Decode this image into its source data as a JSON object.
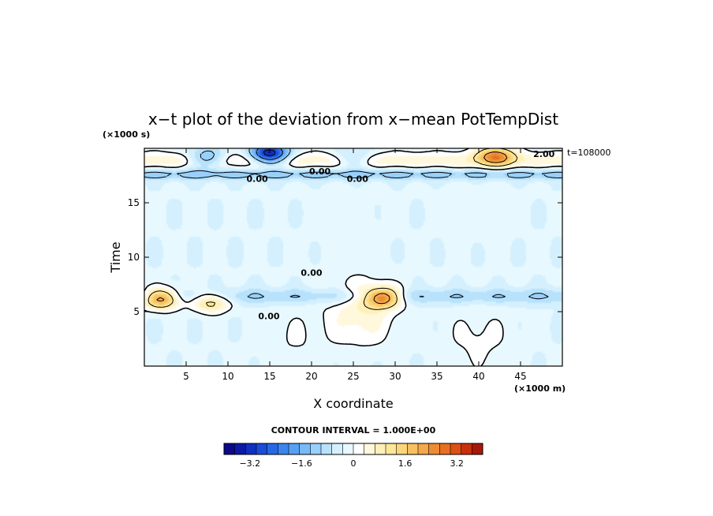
{
  "chart_data": {
    "type": "heatmap",
    "title": "x−t plot of the deviation from x−mean PotTempDist",
    "xlabel": "X coordinate",
    "ylabel": "Time",
    "x_unit": "(×1000 m)",
    "y_unit": "(×1000 s)",
    "time_annotation": "t=108000",
    "xlim": [
      0,
      50
    ],
    "ylim": [
      0,
      20
    ],
    "x_ticks": [
      5,
      10,
      15,
      20,
      25,
      30,
      35,
      40,
      45
    ],
    "y_ticks": [
      5,
      10,
      15
    ],
    "contour_interval_label": "CONTOUR INTERVAL = 1.000E+00",
    "contour_labels": [
      {
        "text": "2.00",
        "x": 47.8,
        "y": 19.5
      },
      {
        "text": "0.00",
        "x": 21.0,
        "y": 17.9
      },
      {
        "text": "0.00",
        "x": 13.5,
        "y": 17.2
      },
      {
        "text": "0.00",
        "x": 25.5,
        "y": 17.2
      },
      {
        "text": "0.00",
        "x": 20.0,
        "y": 8.6
      },
      {
        "text": "0.00",
        "x": 14.9,
        "y": 4.6
      }
    ],
    "colorbar": {
      "min": -4.0,
      "max": 4.0,
      "tick_values": [
        -3.2,
        -1.6,
        0,
        1.6,
        3.2
      ],
      "tick_labels": [
        "−3.2",
        "−1.6",
        "0",
        "1.6",
        "3.2"
      ],
      "colors": [
        "#0a0a8a",
        "#0c1aa6",
        "#1030c0",
        "#1a4cd8",
        "#2868e6",
        "#3c84ee",
        "#58a0f4",
        "#78baf8",
        "#98d0fb",
        "#b8e2fc",
        "#d4f0fe",
        "#e8f8ff",
        "#ffffff",
        "#fff8dc",
        "#fff0b8",
        "#ffe699",
        "#fcd67a",
        "#f8c060",
        "#f4a84a",
        "#ee8c34",
        "#e87022",
        "#dc5014",
        "#c8300c",
        "#a81808"
      ]
    },
    "features": [
      {
        "type": "cool_band",
        "y_center": 17.6,
        "y_halfwidth": 0.5,
        "value": -0.9
      },
      {
        "type": "cool_band",
        "y_center": 6.4,
        "y_halfwidth": 0.7,
        "value": -0.7
      },
      {
        "type": "warm_band",
        "y_center": 18.9,
        "y_halfwidth": 0.8,
        "value": 0.8
      },
      {
        "type": "cold_core",
        "x": 15.0,
        "y": 19.5,
        "value": -3.5
      },
      {
        "type": "cold_core",
        "x": 7.5,
        "y": 19.1,
        "value": -1.6
      },
      {
        "type": "cold_core",
        "x": 25.0,
        "y": 19.1,
        "value": -1.0
      },
      {
        "type": "warm_core",
        "x": 2.0,
        "y": 6.2,
        "value": 3.0
      },
      {
        "type": "warm_core",
        "x": 8.0,
        "y": 5.9,
        "value": 1.8
      },
      {
        "type": "warm_core",
        "x": 28.5,
        "y": 6.3,
        "value": 3.0
      },
      {
        "type": "warm_core",
        "x": 42.0,
        "y": 19.3,
        "value": 2.4
      },
      {
        "type": "warm_patch",
        "x": 24.5,
        "y": 13.0,
        "value": 0.15
      },
      {
        "type": "warm_patch",
        "x": 40.0,
        "y": 14.5,
        "value": 0.15
      },
      {
        "type": "warm_patch",
        "x": 26.0,
        "y": 5.0,
        "value": 0.9
      },
      {
        "type": "warm_patch",
        "x": 40.0,
        "y": 2.5,
        "value": 0.4
      },
      {
        "type": "warm_patch",
        "x": 18.0,
        "y": 2.5,
        "value": 0.3
      }
    ]
  }
}
